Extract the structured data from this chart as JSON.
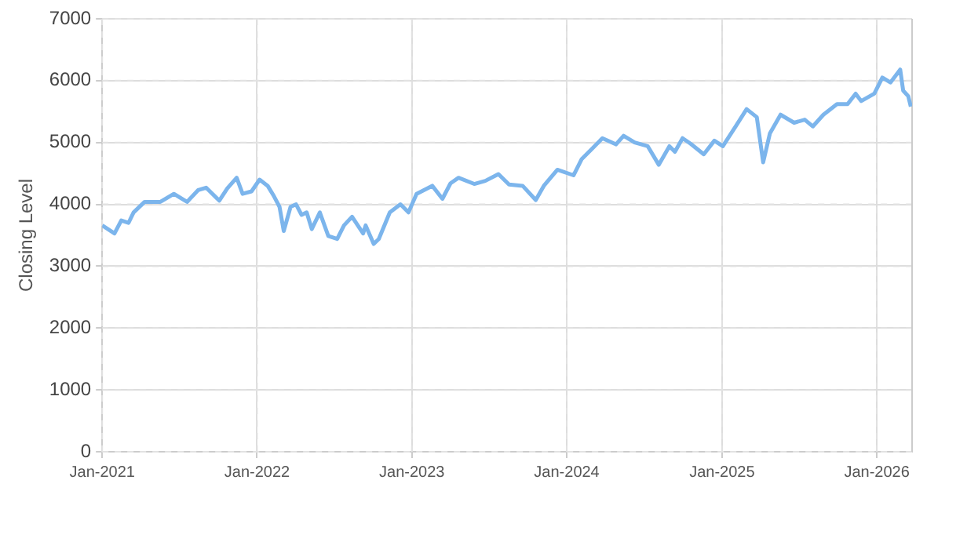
{
  "chart_data": {
    "type": "line",
    "ylabel": "Closing Level",
    "xlim": [
      "2021-01-01",
      "2026-03-25"
    ],
    "ylim": [
      0,
      7000
    ],
    "yticks": [
      0,
      1000,
      2000,
      3000,
      4000,
      5000,
      6000,
      7000
    ],
    "xticks": [
      {
        "value": "2021-01",
        "label": "Jan-2021"
      },
      {
        "value": "2022-01",
        "label": "Jan-2022"
      },
      {
        "value": "2023-01",
        "label": "Jan-2023"
      },
      {
        "value": "2024-01",
        "label": "Jan-2024"
      },
      {
        "value": "2025-01",
        "label": "Jan-2025"
      },
      {
        "value": "2026-01",
        "label": "Jan-2026"
      }
    ],
    "grid": true,
    "legend": false,
    "marker": "none",
    "line_style": "solid",
    "x": [
      "2021-01-01",
      "2021-01-30",
      "2021-02-15",
      "2021-03-04",
      "2021-03-16",
      "2021-04-11",
      "2021-05-18",
      "2021-06-19",
      "2021-07-20",
      "2021-08-15",
      "2021-09-03",
      "2021-10-04",
      "2021-10-23",
      "2021-11-14",
      "2021-11-28",
      "2021-12-19",
      "2022-01-07",
      "2022-01-26",
      "2022-02-10",
      "2022-02-23",
      "2022-03-05",
      "2022-03-21",
      "2022-04-03",
      "2022-04-16",
      "2022-04-28",
      "2022-05-10",
      "2022-05-29",
      "2022-06-18",
      "2022-07-09",
      "2022-07-25",
      "2022-08-13",
      "2022-09-08",
      "2022-09-14",
      "2022-10-03",
      "2022-10-15",
      "2022-11-10",
      "2022-12-05",
      "2022-12-24",
      "2023-01-12",
      "2023-02-18",
      "2023-03-14",
      "2023-04-02",
      "2023-04-21",
      "2023-05-28",
      "2023-06-23",
      "2023-07-24",
      "2023-08-18",
      "2023-09-19",
      "2023-10-20",
      "2023-11-08",
      "2023-12-10",
      "2024-01-17",
      "2024-02-05",
      "2024-03-01",
      "2024-03-25",
      "2024-04-26",
      "2024-05-14",
      "2024-06-09",
      "2024-07-10",
      "2024-08-05",
      "2024-08-30",
      "2024-09-12",
      "2024-09-30",
      "2024-10-19",
      "2024-11-19",
      "2024-12-14",
      "2025-01-03",
      "2025-02-04",
      "2025-02-28",
      "2025-03-24",
      "2025-04-08",
      "2025-04-24",
      "2025-05-19",
      "2025-06-20",
      "2025-07-15",
      "2025-08-03",
      "2025-08-28",
      "2025-09-29",
      "2025-10-24",
      "2025-11-12",
      "2025-11-25",
      "2025-12-26",
      "2026-01-14",
      "2026-02-02",
      "2026-02-25",
      "2026-03-04",
      "2026-03-16",
      "2026-03-22"
    ],
    "series": [
      {
        "color": "#7cb5ec",
        "values": [
          3660,
          3530,
          3740,
          3700,
          3870,
          4040,
          4040,
          4170,
          4040,
          4230,
          4270,
          4060,
          4260,
          4430,
          4170,
          4210,
          4400,
          4300,
          4130,
          3960,
          3570,
          3960,
          4000,
          3830,
          3870,
          3600,
          3870,
          3490,
          3440,
          3660,
          3800,
          3530,
          3660,
          3360,
          3440,
          3870,
          4000,
          3870,
          4170,
          4300,
          4090,
          4340,
          4430,
          4330,
          4380,
          4490,
          4320,
          4300,
          4070,
          4300,
          4560,
          4470,
          4730,
          4900,
          5070,
          4970,
          5110,
          5000,
          4940,
          4640,
          4940,
          4850,
          5070,
          4980,
          4810,
          5030,
          4940,
          5280,
          5540,
          5410,
          4680,
          5150,
          5450,
          5320,
          5370,
          5260,
          5450,
          5620,
          5620,
          5790,
          5670,
          5790,
          6050,
          5970,
          6180,
          5840,
          5750,
          5580
        ]
      }
    ]
  }
}
